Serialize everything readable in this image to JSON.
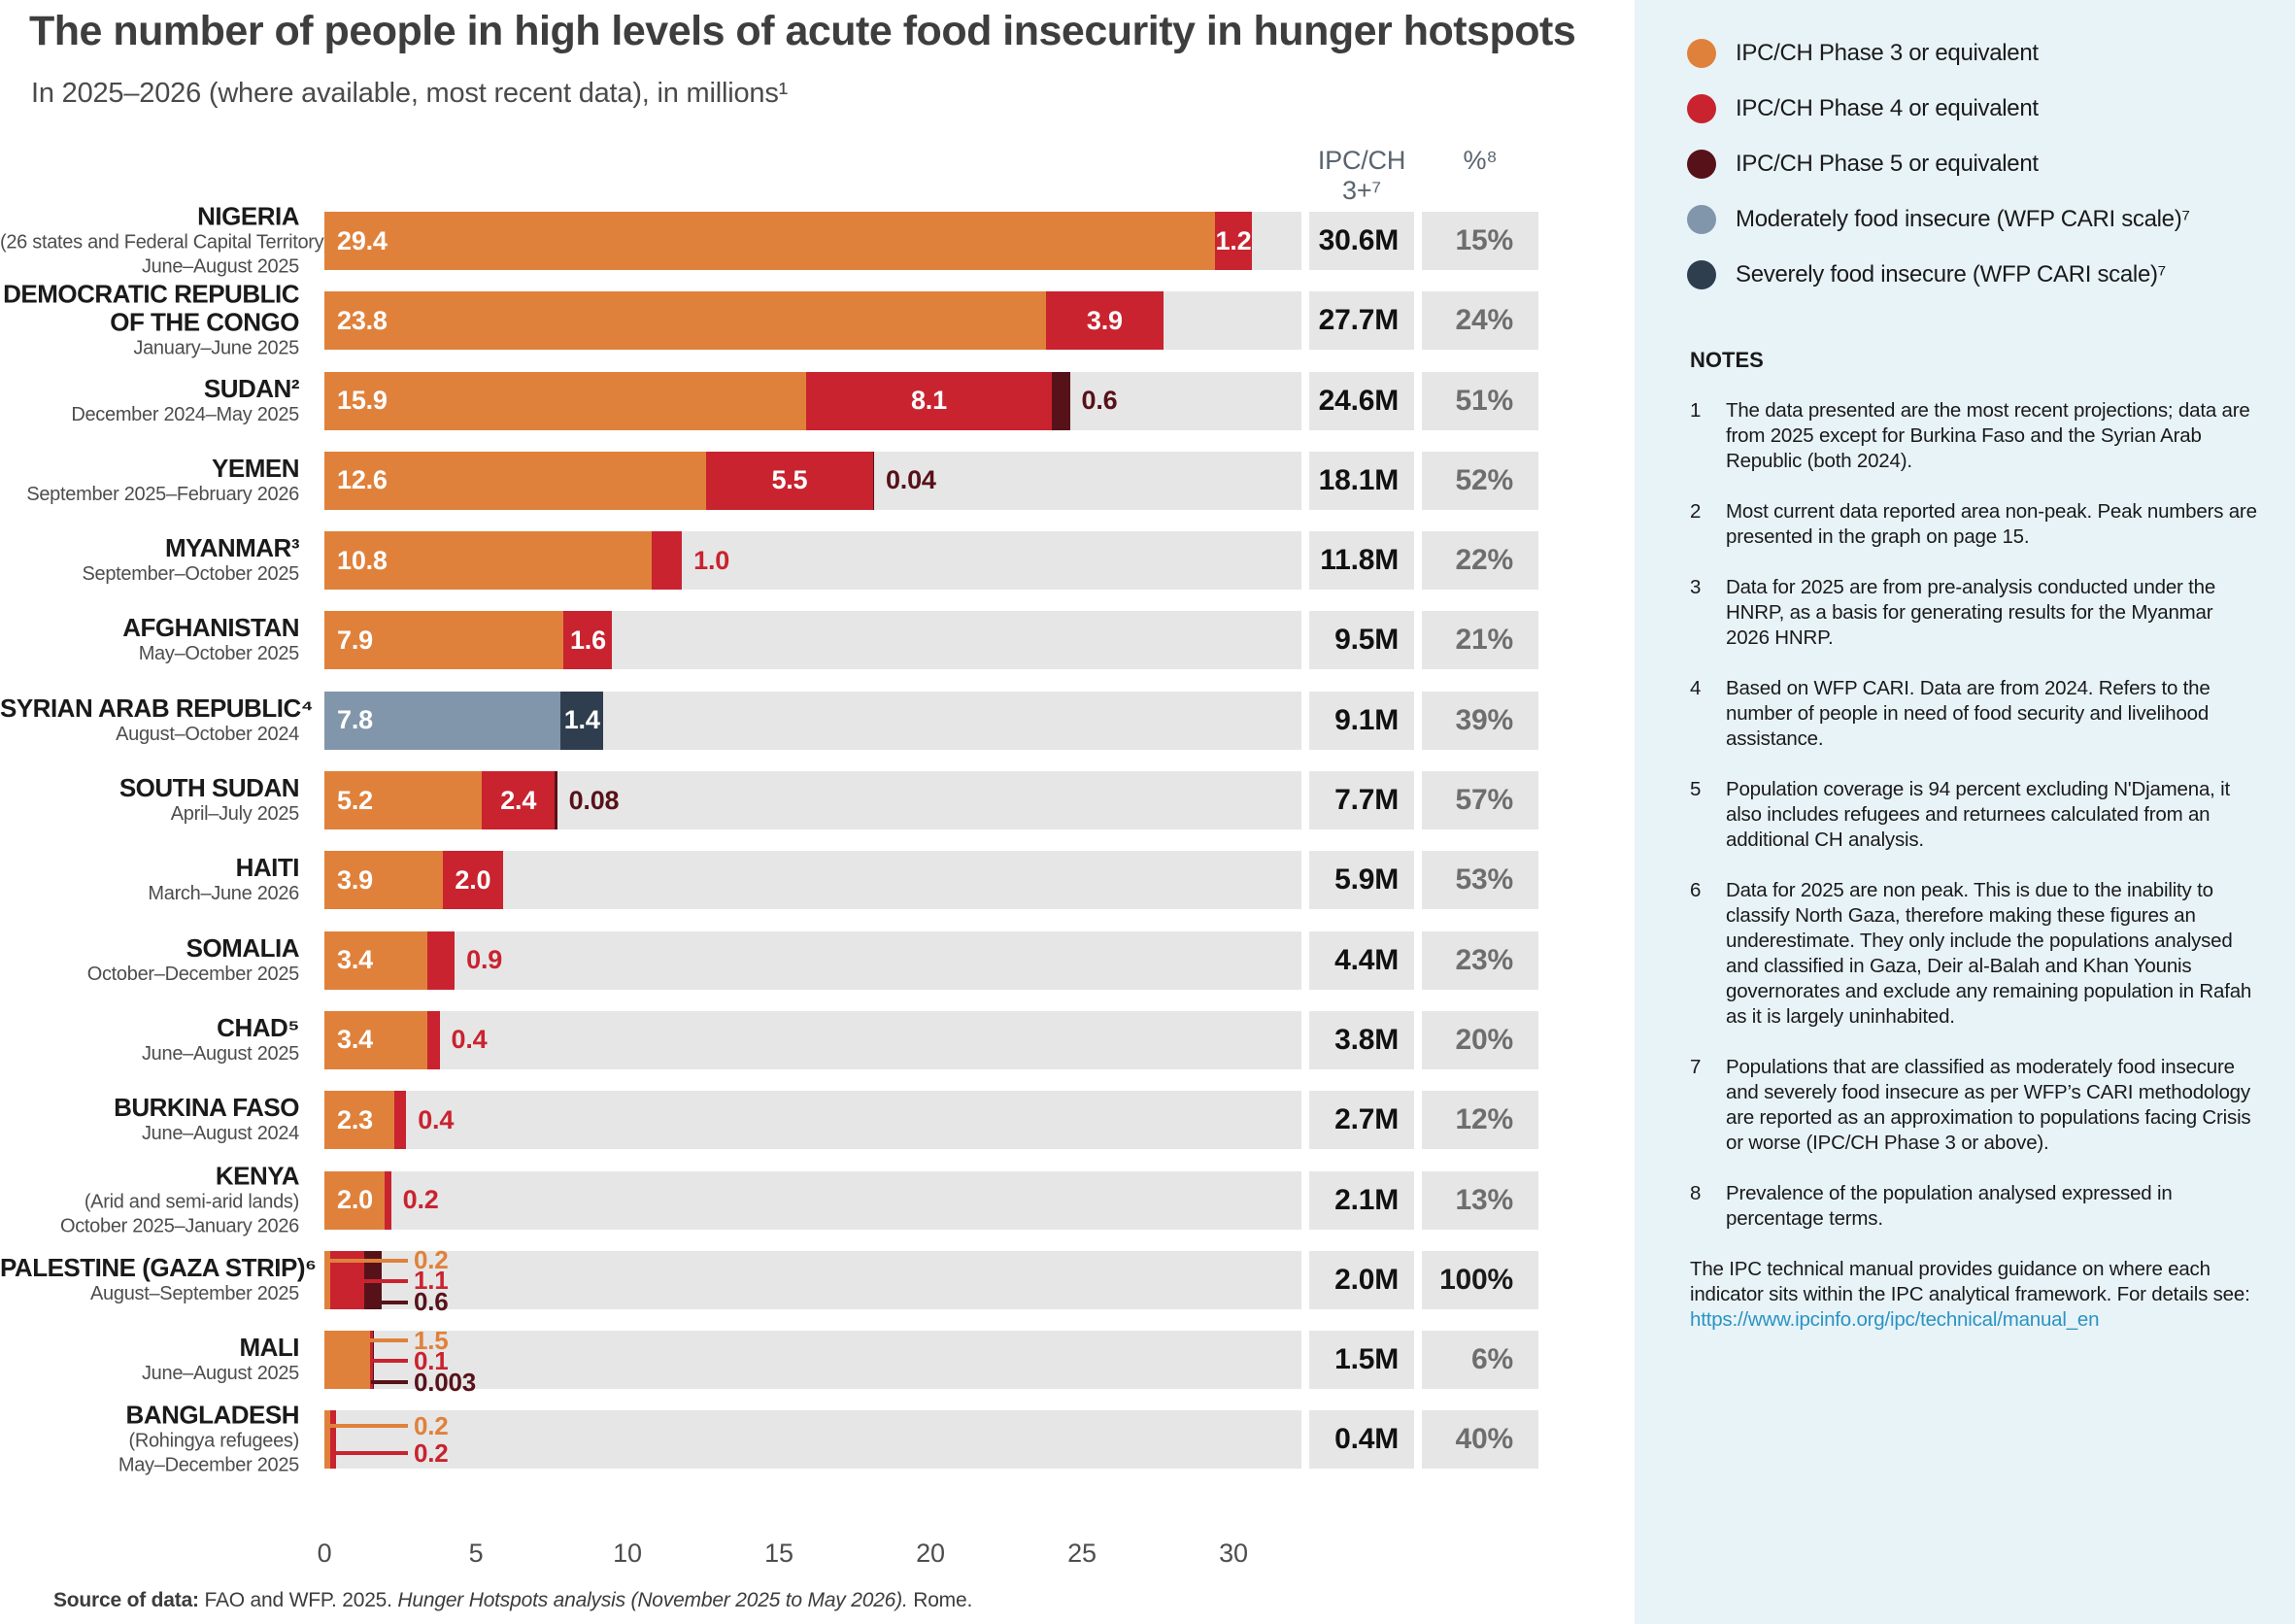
{
  "title": "The number of people in high levels of acute food insecurity in hunger hotspots",
  "subtitle": "In 2025–2026 (where available, most recent data), in millions¹",
  "columns": {
    "ipc": "IPC/CH 3+⁷",
    "pct": "%⁸"
  },
  "colors": {
    "phase3": "#E0813B",
    "phase4": "#C9232F",
    "phase5": "#571219",
    "moderate": "#8196AA",
    "severe": "#2F3E4E",
    "track": "#E6E6E6",
    "panel": "#E8F3F8",
    "link": "#2B93C2"
  },
  "legend": [
    {
      "key": "phase3",
      "label": "IPC/CH Phase 3 or equivalent"
    },
    {
      "key": "phase4",
      "label": "IPC/CH Phase 4 or equivalent"
    },
    {
      "key": "phase5",
      "label": "IPC/CH Phase 5 or equivalent"
    },
    {
      "key": "moderate",
      "label": "Moderately food insecure (WFP CARI scale)⁷"
    },
    {
      "key": "severe",
      "label": "Severely food insecure (WFP CARI scale)⁷"
    }
  ],
  "chart_data": {
    "type": "bar",
    "orientation": "horizontal",
    "unit": "millions of people",
    "x_ticks": [
      0,
      5,
      10,
      15,
      20,
      25,
      30
    ],
    "xlim": [
      0,
      32.2
    ],
    "rows": [
      {
        "name_lines": [
          "NIGERIA"
        ],
        "sub": "(26 states and Federal Capital Territory)",
        "period": "June–August 2025",
        "segments": [
          {
            "key": "phase3",
            "value": 29.4,
            "label": "29.4",
            "label_pos": "inside"
          },
          {
            "key": "phase4",
            "value": 1.2,
            "label": "1.2",
            "label_pos": "inside"
          }
        ],
        "total": "30.6M",
        "pct": "15%"
      },
      {
        "name_lines": [
          "DEMOCRATIC REPUBLIC",
          "OF THE CONGO"
        ],
        "period": "January–June 2025",
        "segments": [
          {
            "key": "phase3",
            "value": 23.8,
            "label": "23.8",
            "label_pos": "inside"
          },
          {
            "key": "phase4",
            "value": 3.9,
            "label": "3.9",
            "label_pos": "inside"
          }
        ],
        "total": "27.7M",
        "pct": "24%"
      },
      {
        "name_lines": [
          "SUDAN²"
        ],
        "period": "December 2024–May 2025",
        "segments": [
          {
            "key": "phase3",
            "value": 15.9,
            "label": "15.9",
            "label_pos": "inside"
          },
          {
            "key": "phase4",
            "value": 8.1,
            "label": "8.1",
            "label_pos": "inside"
          },
          {
            "key": "phase5",
            "value": 0.6,
            "label": "0.6",
            "label_pos": "outside"
          }
        ],
        "total": "24.6M",
        "pct": "51%"
      },
      {
        "name_lines": [
          "YEMEN"
        ],
        "period": "September 2025–February 2026",
        "segments": [
          {
            "key": "phase3",
            "value": 12.6,
            "label": "12.6",
            "label_pos": "inside"
          },
          {
            "key": "phase4",
            "value": 5.5,
            "label": "5.5",
            "label_pos": "inside"
          },
          {
            "key": "phase5",
            "value": 0.04,
            "label": "0.04",
            "label_pos": "outside"
          }
        ],
        "total": "18.1M",
        "pct": "52%"
      },
      {
        "name_lines": [
          "MYANMAR³"
        ],
        "period": "September–October 2025",
        "segments": [
          {
            "key": "phase3",
            "value": 10.8,
            "label": "10.8",
            "label_pos": "inside"
          },
          {
            "key": "phase4",
            "value": 1.0,
            "label": "1.0",
            "label_pos": "outside"
          }
        ],
        "total": "11.8M",
        "pct": "22%"
      },
      {
        "name_lines": [
          "AFGHANISTAN"
        ],
        "period": "May–October 2025",
        "segments": [
          {
            "key": "phase3",
            "value": 7.9,
            "label": "7.9",
            "label_pos": "inside"
          },
          {
            "key": "phase4",
            "value": 1.6,
            "label": "1.6",
            "label_pos": "inside"
          }
        ],
        "total": "9.5M",
        "pct": "21%"
      },
      {
        "name_lines": [
          "SYRIAN ARAB REPUBLIC⁴"
        ],
        "period": "August–October 2024",
        "segments": [
          {
            "key": "moderate",
            "value": 7.8,
            "label": "7.8",
            "label_pos": "inside"
          },
          {
            "key": "severe",
            "value": 1.4,
            "label": "1.4",
            "label_pos": "inside"
          }
        ],
        "total": "9.1M",
        "pct": "39%"
      },
      {
        "name_lines": [
          "SOUTH SUDAN"
        ],
        "period": "April–July 2025",
        "segments": [
          {
            "key": "phase3",
            "value": 5.2,
            "label": "5.2",
            "label_pos": "inside"
          },
          {
            "key": "phase4",
            "value": 2.4,
            "label": "2.4",
            "label_pos": "inside"
          },
          {
            "key": "phase5",
            "value": 0.08,
            "label": "0.08",
            "label_pos": "outside"
          }
        ],
        "total": "7.7M",
        "pct": "57%"
      },
      {
        "name_lines": [
          "HAITI"
        ],
        "period": "March–June 2026",
        "segments": [
          {
            "key": "phase3",
            "value": 3.9,
            "label": "3.9",
            "label_pos": "inside"
          },
          {
            "key": "phase4",
            "value": 2.0,
            "label": "2.0",
            "label_pos": "inside"
          }
        ],
        "total": "5.9M",
        "pct": "53%"
      },
      {
        "name_lines": [
          "SOMALIA"
        ],
        "period": "October–December 2025",
        "segments": [
          {
            "key": "phase3",
            "value": 3.4,
            "label": "3.4",
            "label_pos": "inside"
          },
          {
            "key": "phase4",
            "value": 0.9,
            "label": "0.9",
            "label_pos": "outside"
          }
        ],
        "total": "4.4M",
        "pct": "23%"
      },
      {
        "name_lines": [
          "CHAD⁵"
        ],
        "period": "June–August 2025",
        "segments": [
          {
            "key": "phase3",
            "value": 3.4,
            "label": "3.4",
            "label_pos": "inside"
          },
          {
            "key": "phase4",
            "value": 0.4,
            "label": "0.4",
            "label_pos": "outside"
          }
        ],
        "total": "3.8M",
        "pct": "20%"
      },
      {
        "name_lines": [
          "BURKINA FASO"
        ],
        "period": "June–August 2024",
        "segments": [
          {
            "key": "phase3",
            "value": 2.3,
            "label": "2.3",
            "label_pos": "inside"
          },
          {
            "key": "phase4",
            "value": 0.4,
            "label": "0.4",
            "label_pos": "outside"
          }
        ],
        "total": "2.7M",
        "pct": "12%"
      },
      {
        "name_lines": [
          "KENYA"
        ],
        "sub": "(Arid and semi-arid lands)",
        "period": "October 2025–January 2026",
        "segments": [
          {
            "key": "phase3",
            "value": 2.0,
            "label": "2.0",
            "label_pos": "inside"
          },
          {
            "key": "phase4",
            "value": 0.2,
            "label": "0.2",
            "label_pos": "outside"
          }
        ],
        "total": "2.1M",
        "pct": "13%"
      },
      {
        "name_lines": [
          "PALESTINE (GAZA STRIP)⁶"
        ],
        "period": "August–September 2025",
        "segments": [
          {
            "key": "phase3",
            "value": 0.2
          },
          {
            "key": "phase4",
            "value": 1.1
          },
          {
            "key": "phase5",
            "value": 0.6
          }
        ],
        "callouts": [
          {
            "key": "phase3",
            "label": "0.2"
          },
          {
            "key": "phase4",
            "label": "1.1"
          },
          {
            "key": "phase5",
            "label": "0.6"
          }
        ],
        "total": "2.0M",
        "pct": "100%",
        "pct_dark": true
      },
      {
        "name_lines": [
          "MALI"
        ],
        "period": "June–August 2025",
        "segments": [
          {
            "key": "phase3",
            "value": 1.5
          },
          {
            "key": "phase4",
            "value": 0.1
          },
          {
            "key": "phase5",
            "value": 0.003
          }
        ],
        "callouts": [
          {
            "key": "phase3",
            "label": "1.5"
          },
          {
            "key": "phase4",
            "label": "0.1"
          },
          {
            "key": "phase5",
            "label": "0.003"
          }
        ],
        "total": "1.5M",
        "pct": "6%"
      },
      {
        "name_lines": [
          "BANGLADESH"
        ],
        "sub": "(Rohingya refugees)",
        "period": "May–December 2025",
        "segments": [
          {
            "key": "phase3",
            "value": 0.2
          },
          {
            "key": "phase4",
            "value": 0.2
          }
        ],
        "callouts": [
          {
            "key": "phase3",
            "label": "0.2"
          },
          {
            "key": "phase4",
            "label": "0.2"
          }
        ],
        "total": "0.4M",
        "pct": "40%"
      }
    ]
  },
  "notes": {
    "title": "NOTES",
    "items": [
      {
        "num": "1",
        "text": "The data presented are the most recent projections; data are from 2025 except for Burkina Faso and the Syrian Arab Republic (both 2024)."
      },
      {
        "num": "2",
        "text": "Most current data reported area non-peak. Peak numbers are presented in the graph on page 15."
      },
      {
        "num": "3",
        "text": "Data for 2025 are from pre-analysis conducted under the HNRP, as a basis for generating results for the Myanmar 2026 HNRP."
      },
      {
        "num": "4",
        "text": "Based on WFP CARI. Data are from 2024. Refers to the number of people in need of food security and livelihood assistance."
      },
      {
        "num": "5",
        "text": "Population coverage is 94 percent excluding N'Djamena, it also includes refugees and returnees calculated from an additional CH analysis."
      },
      {
        "num": "6",
        "text": "Data for 2025 are non peak. This is due to the inability to classify North Gaza, therefore making these figures an underestimate. They only include the populations analysed and classified in Gaza, Deir al-Balah and Khan Younis governorates and exclude any remaining population in Rafah as it is largely uninhabited."
      },
      {
        "num": "7",
        "text": "Populations that are classified as moderately food insecure and severely food insecure as per WFP’s CARI methodology are reported as an approximation to populations facing Crisis or worse (IPC/CH Phase 3 or above)."
      },
      {
        "num": "8",
        "text": "Prevalence of the population analysed expressed in percentage terms."
      }
    ],
    "footer": "The IPC technical manual provides guidance on where each indicator sits within the IPC analytical framework. For details see:",
    "link": "https://www.ipcinfo.org/ipc/technical/manual_en"
  },
  "source": {
    "prefix": "Source of data: ",
    "normal": "FAO and WFP. 2025. ",
    "italic": "Hunger Hotspots analysis (November 2025 to May 2026).",
    "suffix": " Rome."
  }
}
